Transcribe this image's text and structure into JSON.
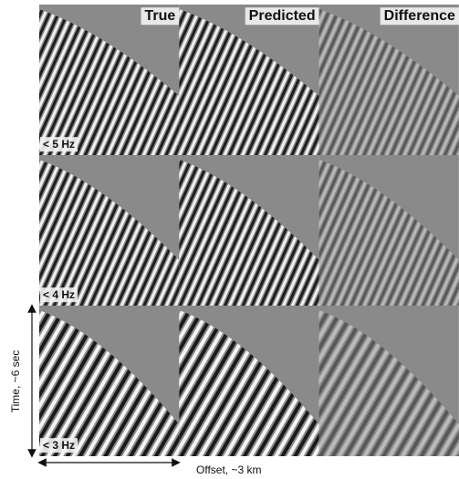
{
  "columns": [
    "True",
    "Predicted",
    "Difference"
  ],
  "rows": [
    "< 5 Hz",
    "< 4 Hz",
    "< 3 Hz"
  ],
  "axes": {
    "time": "Time, ~6 sec",
    "offset": "Offset, ~3 km"
  }
}
